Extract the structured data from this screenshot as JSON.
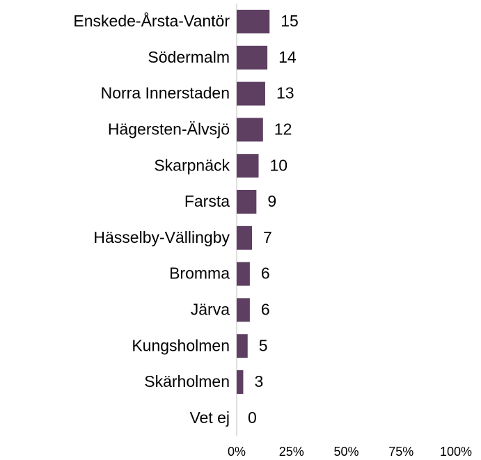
{
  "chart_data": {
    "type": "bar",
    "orientation": "horizontal",
    "categories": [
      "Enskede-Årsta-Vantör",
      "Södermalm",
      "Norra Innerstaden",
      "Hägersten-Älvsjö",
      "Skarpnäck",
      "Farsta",
      "Hässelby-Vällingby",
      "Bromma",
      "Järva",
      "Kungsholmen",
      "Skärholmen",
      "Vet ej"
    ],
    "values": [
      15,
      14,
      13,
      12,
      10,
      9,
      7,
      6,
      6,
      5,
      3,
      0
    ],
    "color": "#5e3f62",
    "xlim": [
      0,
      100
    ],
    "xticks": [
      {
        "value": 0,
        "label": "0%"
      },
      {
        "value": 25,
        "label": "25%"
      },
      {
        "value": 50,
        "label": "50%"
      },
      {
        "value": 75,
        "label": "75%"
      },
      {
        "value": 100,
        "label": "100%"
      }
    ]
  }
}
